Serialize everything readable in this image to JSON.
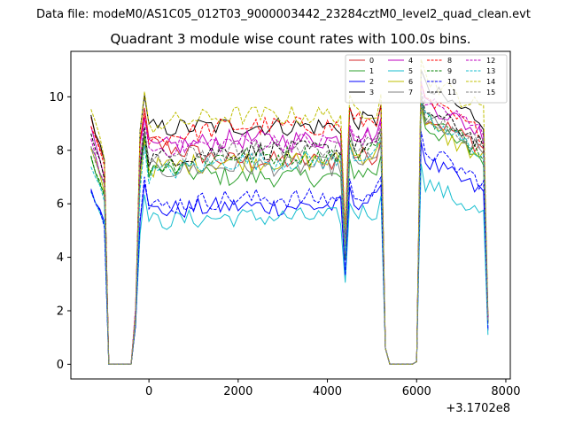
{
  "suptitle": "Data file: modeM0/AS1C05_012T03_9000003442_23284cztM0_level2_quad_clean.evt",
  "chart_data": {
    "type": "line",
    "title": "Quadrant 3 module wise count rates with 100.0s bins.",
    "xlabel": "",
    "ylabel": "",
    "x_offset_label": "+3.1702e8",
    "xlim": [
      -1750,
      8100
    ],
    "ylim": [
      -0.55,
      11.7
    ],
    "xticks": [
      0,
      2000,
      4000,
      6000,
      8000
    ],
    "xtick_labels": [
      "0",
      "2000",
      "4000",
      "6000",
      "8000"
    ],
    "yticks": [
      0,
      2,
      4,
      6,
      8,
      10
    ],
    "ytick_labels": [
      "0",
      "2",
      "4",
      "6",
      "8",
      "10"
    ],
    "grid": false,
    "legend_position": "upper right",
    "x_start": -1300,
    "x_step": 100,
    "x_end": 7600,
    "gaps": [
      {
        "from": -900,
        "to": -400,
        "value": 0.0
      },
      {
        "from": 5300,
        "to": 5950,
        "value": 0.0
      }
    ],
    "dip": {
      "at": 4450,
      "depth": 0.55
    },
    "series": [
      {
        "name": "0",
        "color": "#d62728",
        "dash": "solid",
        "level1": 8.4,
        "level2": 7.6,
        "level3": 8.0,
        "start": 9.2
      },
      {
        "name": "1",
        "color": "#2ca02c",
        "dash": "solid",
        "level1": 7.4,
        "level2": 7.0,
        "level3": 7.6,
        "start": 7.7
      },
      {
        "name": "2",
        "color": "#0000ff",
        "dash": "solid",
        "level1": 5.7,
        "level2": 5.9,
        "level3": 6.3,
        "start": 6.6
      },
      {
        "name": "3",
        "color": "#000000",
        "dash": "solid",
        "level1": 8.8,
        "level2": 8.9,
        "level3": 9.0,
        "start": 9.3
      },
      {
        "name": "4",
        "color": "#bf00bf",
        "dash": "solid",
        "level1": 8.0,
        "level2": 8.4,
        "level3": 8.5,
        "start": 8.8
      },
      {
        "name": "5",
        "color": "#17becf",
        "dash": "solid",
        "level1": 5.3,
        "level2": 5.5,
        "level3": 5.5,
        "start": 6.5
      },
      {
        "name": "6",
        "color": "#bfbf00",
        "dash": "solid",
        "level1": 7.3,
        "level2": 7.6,
        "level3": 7.6,
        "start": 8.0
      },
      {
        "name": "7",
        "color": "#808080",
        "dash": "solid",
        "level1": 7.2,
        "level2": 7.4,
        "level3": 7.8,
        "start": 8.2
      },
      {
        "name": "8",
        "color": "#ff0000",
        "dash": "dashed",
        "level1": 8.3,
        "level2": 8.9,
        "level3": 8.5,
        "start": 9.0
      },
      {
        "name": "9",
        "color": "#008000",
        "dash": "dashed",
        "level1": 7.3,
        "level2": 7.8,
        "level3": 7.9,
        "start": 7.8
      },
      {
        "name": "10",
        "color": "#0000ff",
        "dash": "dashed",
        "level1": 5.8,
        "level2": 6.2,
        "level3": 6.7,
        "start": 6.5
      },
      {
        "name": "11",
        "color": "#000000",
        "dash": "dashed",
        "level1": 7.6,
        "level2": 8.0,
        "level3": 8.2,
        "start": 8.6
      },
      {
        "name": "12",
        "color": "#bf00bf",
        "dash": "dashed",
        "level1": 8.0,
        "level2": 8.3,
        "level3": 8.6,
        "start": 8.3
      },
      {
        "name": "13",
        "color": "#17becf",
        "dash": "dashed",
        "level1": 7.0,
        "level2": 7.6,
        "level3": 7.8,
        "start": 7.5
      },
      {
        "name": "14",
        "color": "#bfbf00",
        "dash": "dashed",
        "level1": 8.9,
        "level2": 9.3,
        "level3": 9.4,
        "start": 9.6
      },
      {
        "name": "15",
        "color": "#808080",
        "dash": "dashed",
        "level1": 7.6,
        "level2": 8.0,
        "level3": 8.1,
        "start": 8.2
      }
    ]
  }
}
